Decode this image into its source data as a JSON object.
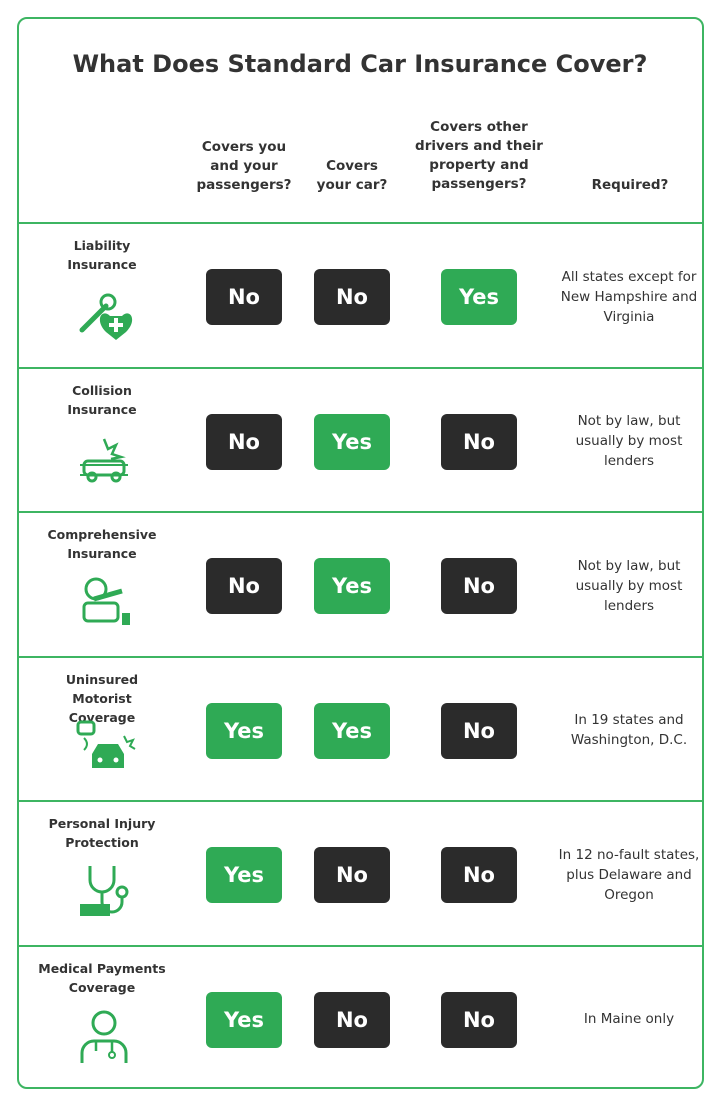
{
  "title": "What Does Standard Car Insurance Cover?",
  "headers": [
    "Covers you and your passengers?",
    "Covers your car?",
    "Covers other drivers and their property and passengers?",
    "Required?"
  ],
  "colors": {
    "yes": "#2faa55",
    "no": "#2b2b2b",
    "accent": "#3db562"
  },
  "rows": [
    {
      "label": "Liability Insurance",
      "icon": "wrench-heart-icon",
      "values": [
        "No",
        "No",
        "Yes"
      ],
      "required": "All states except for New Hampshire and Virginia"
    },
    {
      "label": "Collision Insurance",
      "icon": "car-crash-icon",
      "values": [
        "No",
        "Yes",
        "No"
      ],
      "required": "Not by law, but usually by most lenders"
    },
    {
      "label": "Comprehensive Insurance",
      "icon": "tree-on-car-icon",
      "values": [
        "No",
        "Yes",
        "No"
      ],
      "required": "Not by law, but usually by most lenders"
    },
    {
      "label": "Uninsured Motorist Coverage",
      "icon": "hit-and-run-icon",
      "values": [
        "Yes",
        "Yes",
        "No"
      ],
      "required": "In 19 states and Washington, D.C."
    },
    {
      "label": "Personal Injury Protection",
      "icon": "stethoscope-money-icon",
      "values": [
        "Yes",
        "No",
        "No"
      ],
      "required": "In 12 no-fault states, plus Delaware and Oregon"
    },
    {
      "label": "Medical Payments Coverage",
      "icon": "doctor-icon",
      "values": [
        "Yes",
        "No",
        "No"
      ],
      "required": "In Maine only"
    }
  ]
}
